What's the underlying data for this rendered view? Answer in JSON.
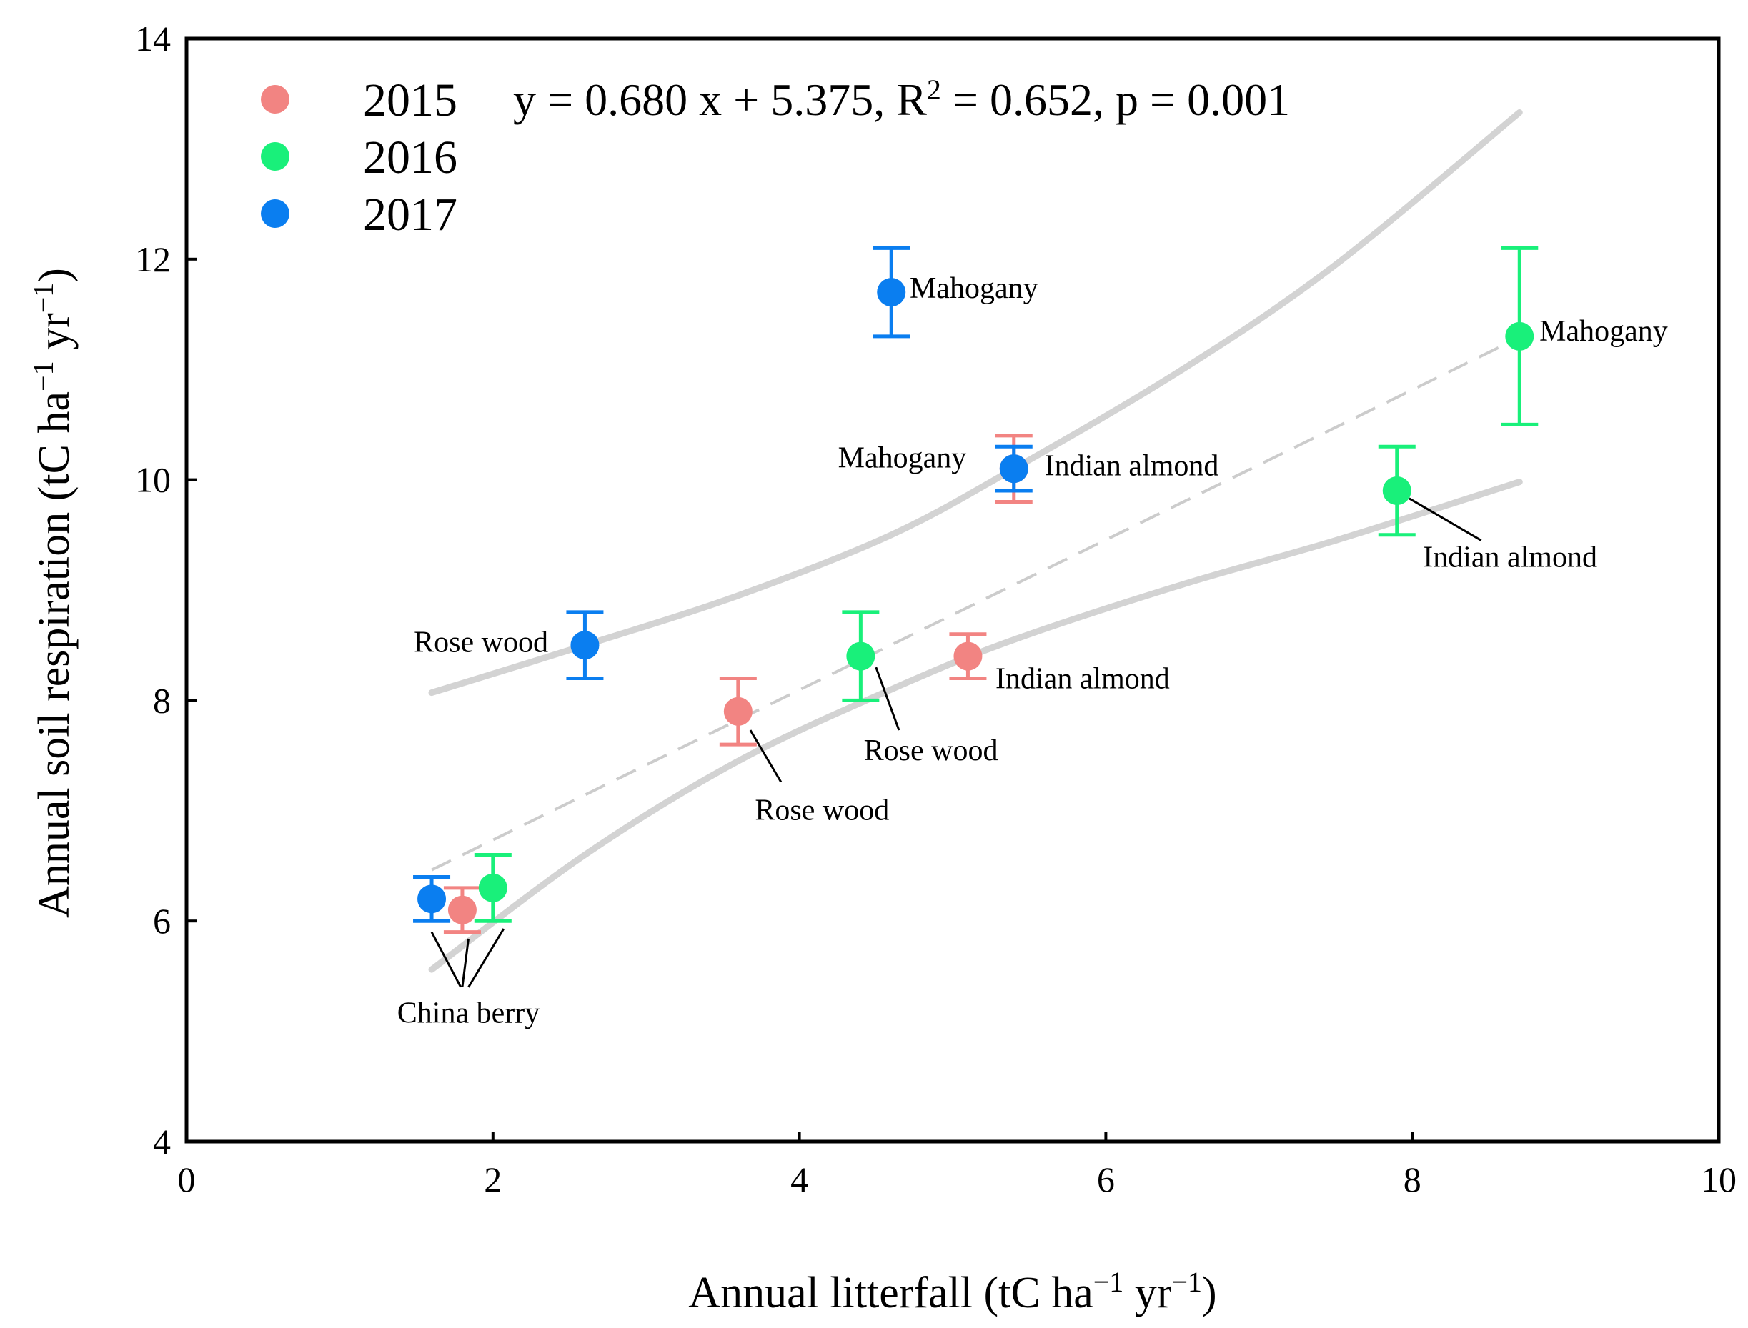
{
  "chart_data": {
    "type": "scatter",
    "xlabel": "Annual litterfall (tC ha",
    "ylabel": "Annual soil respiration (tC ha",
    "unit_sup": "−1",
    "unit_yr": " yr",
    "unit_close": ")",
    "xlim": [
      0,
      10
    ],
    "ylim": [
      4,
      14
    ],
    "xticks": [
      0,
      2,
      4,
      6,
      8,
      10
    ],
    "yticks": [
      4,
      6,
      8,
      10,
      12,
      14
    ],
    "legend_position": "top-left",
    "equation": {
      "prefix": "y = 0.680 x + 5.375, R",
      "sup": "2",
      "suffix": " = 0.652, p = 0.001"
    },
    "series": [
      {
        "name": "2015",
        "color": "#F28482",
        "points": [
          {
            "x": 1.8,
            "y": 6.1,
            "err": 0.2
          },
          {
            "x": 3.6,
            "y": 7.9,
            "err": 0.3
          },
          {
            "x": 5.1,
            "y": 8.4,
            "err": 0.2
          },
          {
            "x": 5.4,
            "y": 10.1,
            "err": 0.3
          }
        ]
      },
      {
        "name": "2016",
        "color": "#19F07A",
        "points": [
          {
            "x": 2.0,
            "y": 6.3,
            "err": 0.3
          },
          {
            "x": 4.4,
            "y": 8.4,
            "err": 0.4
          },
          {
            "x": 7.9,
            "y": 9.9,
            "err": 0.4
          },
          {
            "x": 8.7,
            "y": 11.3,
            "err": 0.8
          }
        ]
      },
      {
        "name": "2017",
        "color": "#0A7EF0",
        "points": [
          {
            "x": 1.6,
            "y": 6.2,
            "err": 0.2
          },
          {
            "x": 2.6,
            "y": 8.5,
            "err": 0.3
          },
          {
            "x": 4.6,
            "y": 11.7,
            "err": 0.4
          },
          {
            "x": 5.4,
            "y": 10.1,
            "err": 0.2
          }
        ]
      }
    ],
    "regression": {
      "slope": 0.68,
      "intercept": 5.375,
      "x_range": [
        1.6,
        8.7
      ],
      "color": "#CCCCCC"
    },
    "confidence_band": {
      "upper": [
        [
          1.6,
          8.07
        ],
        [
          2.6,
          8.5
        ],
        [
          3.6,
          8.95
        ],
        [
          4.6,
          9.5
        ],
        [
          5.4,
          10.1
        ],
        [
          6.5,
          11.0
        ],
        [
          7.5,
          11.95
        ],
        [
          8.7,
          13.33
        ]
      ],
      "lower": [
        [
          1.6,
          5.56
        ],
        [
          2.6,
          6.6
        ],
        [
          3.6,
          7.45
        ],
        [
          4.6,
          8.1
        ],
        [
          5.4,
          8.55
        ],
        [
          6.5,
          9.05
        ],
        [
          7.5,
          9.45
        ],
        [
          8.7,
          9.98
        ]
      ],
      "color": "#D3D3D3"
    },
    "annotations": [
      {
        "text": "Mahogany",
        "x": 4.72,
        "y": 11.74,
        "anchor": "start"
      },
      {
        "text": "Mahogany",
        "x": 8.83,
        "y": 11.35,
        "anchor": "start"
      },
      {
        "text": "Mahogany",
        "x": 5.09,
        "y": 10.2,
        "anchor": "end"
      },
      {
        "text": "Indian almond",
        "x": 5.6,
        "y": 10.13,
        "anchor": "start"
      },
      {
        "text": "Indian almond",
        "x": 8.07,
        "y": 9.3,
        "anchor": "start"
      },
      {
        "text": "Indian almond",
        "x": 5.28,
        "y": 8.2,
        "anchor": "start"
      },
      {
        "text": "Rose wood",
        "x": 2.36,
        "y": 8.53,
        "anchor": "end"
      },
      {
        "text": "Rose wood",
        "x": 4.42,
        "y": 7.55,
        "anchor": "start"
      },
      {
        "text": "Rose wood",
        "x": 3.71,
        "y": 7.01,
        "anchor": "start"
      },
      {
        "text": "China berry",
        "x": 1.84,
        "y": 5.17,
        "anchor": "middle"
      }
    ],
    "leaders": [
      [
        [
          7.98,
          9.83
        ],
        [
          8.45,
          9.45
        ]
      ],
      [
        [
          4.5,
          8.3
        ],
        [
          4.65,
          7.73
        ]
      ],
      [
        [
          3.68,
          7.73
        ],
        [
          3.88,
          7.26
        ]
      ],
      [
        [
          1.6,
          5.9
        ],
        [
          1.79,
          5.4
        ]
      ],
      [
        [
          1.84,
          5.84
        ],
        [
          1.8,
          5.4
        ]
      ],
      [
        [
          2.07,
          5.93
        ],
        [
          1.84,
          5.4
        ]
      ]
    ]
  }
}
